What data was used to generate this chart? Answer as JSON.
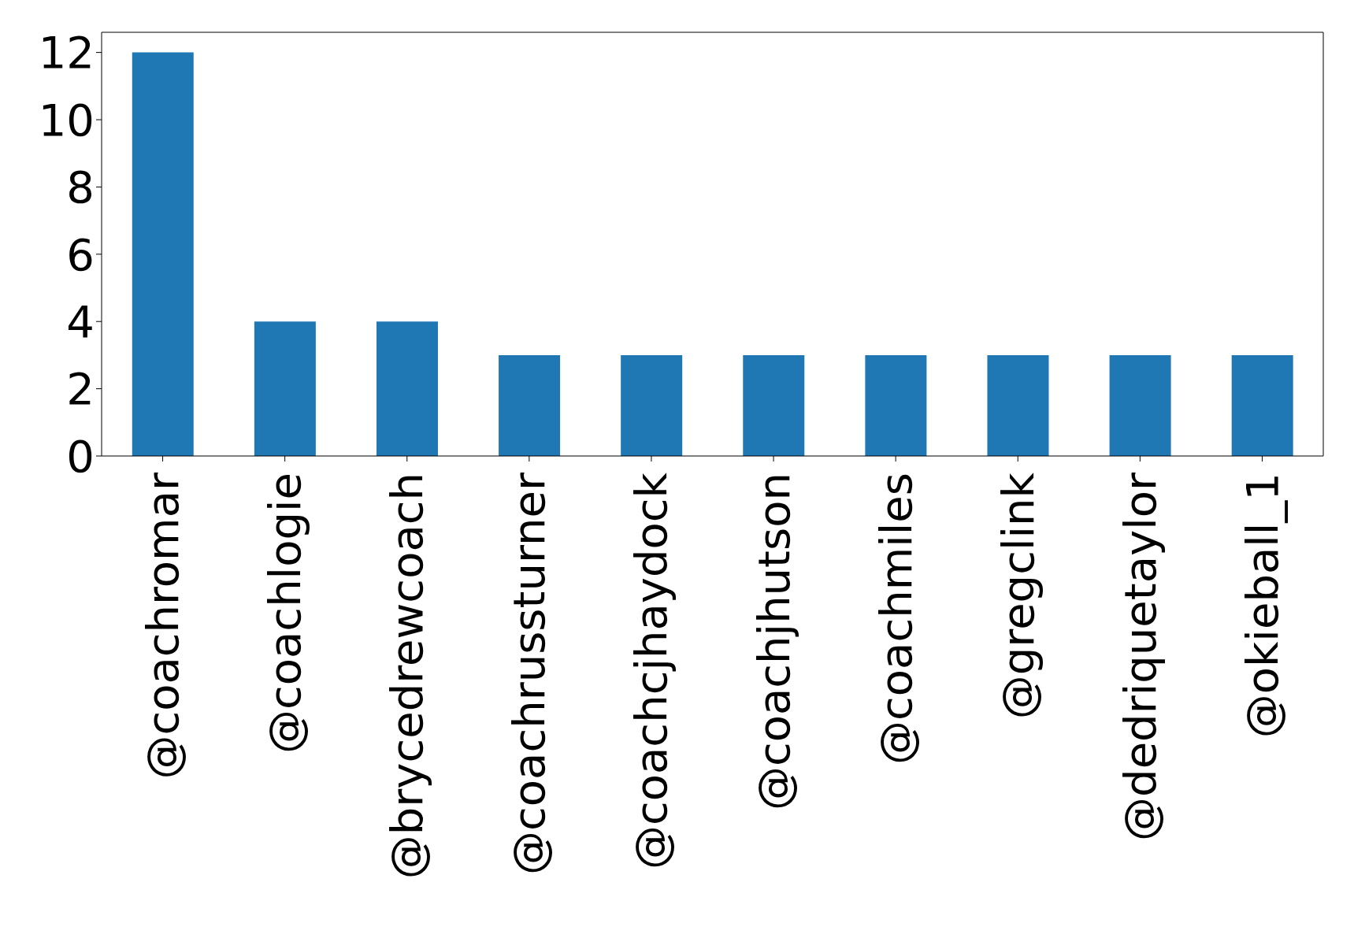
{
  "chart_data": {
    "type": "bar",
    "categories": [
      "@coachromar",
      "@coachlogie",
      "@brycedrewcoach",
      "@coachrussturner",
      "@coachcjhaydock",
      "@coachjhutson",
      "@coachmiles",
      "@gregclink",
      "@dedriquetaylor",
      "@okieball_1"
    ],
    "values": [
      12,
      4,
      4,
      3,
      3,
      3,
      3,
      3,
      3,
      3
    ],
    "color": "#1f77b4",
    "ylim": [
      0,
      12.6
    ],
    "yticks": [
      0,
      2,
      4,
      6,
      8,
      10,
      12
    ]
  }
}
